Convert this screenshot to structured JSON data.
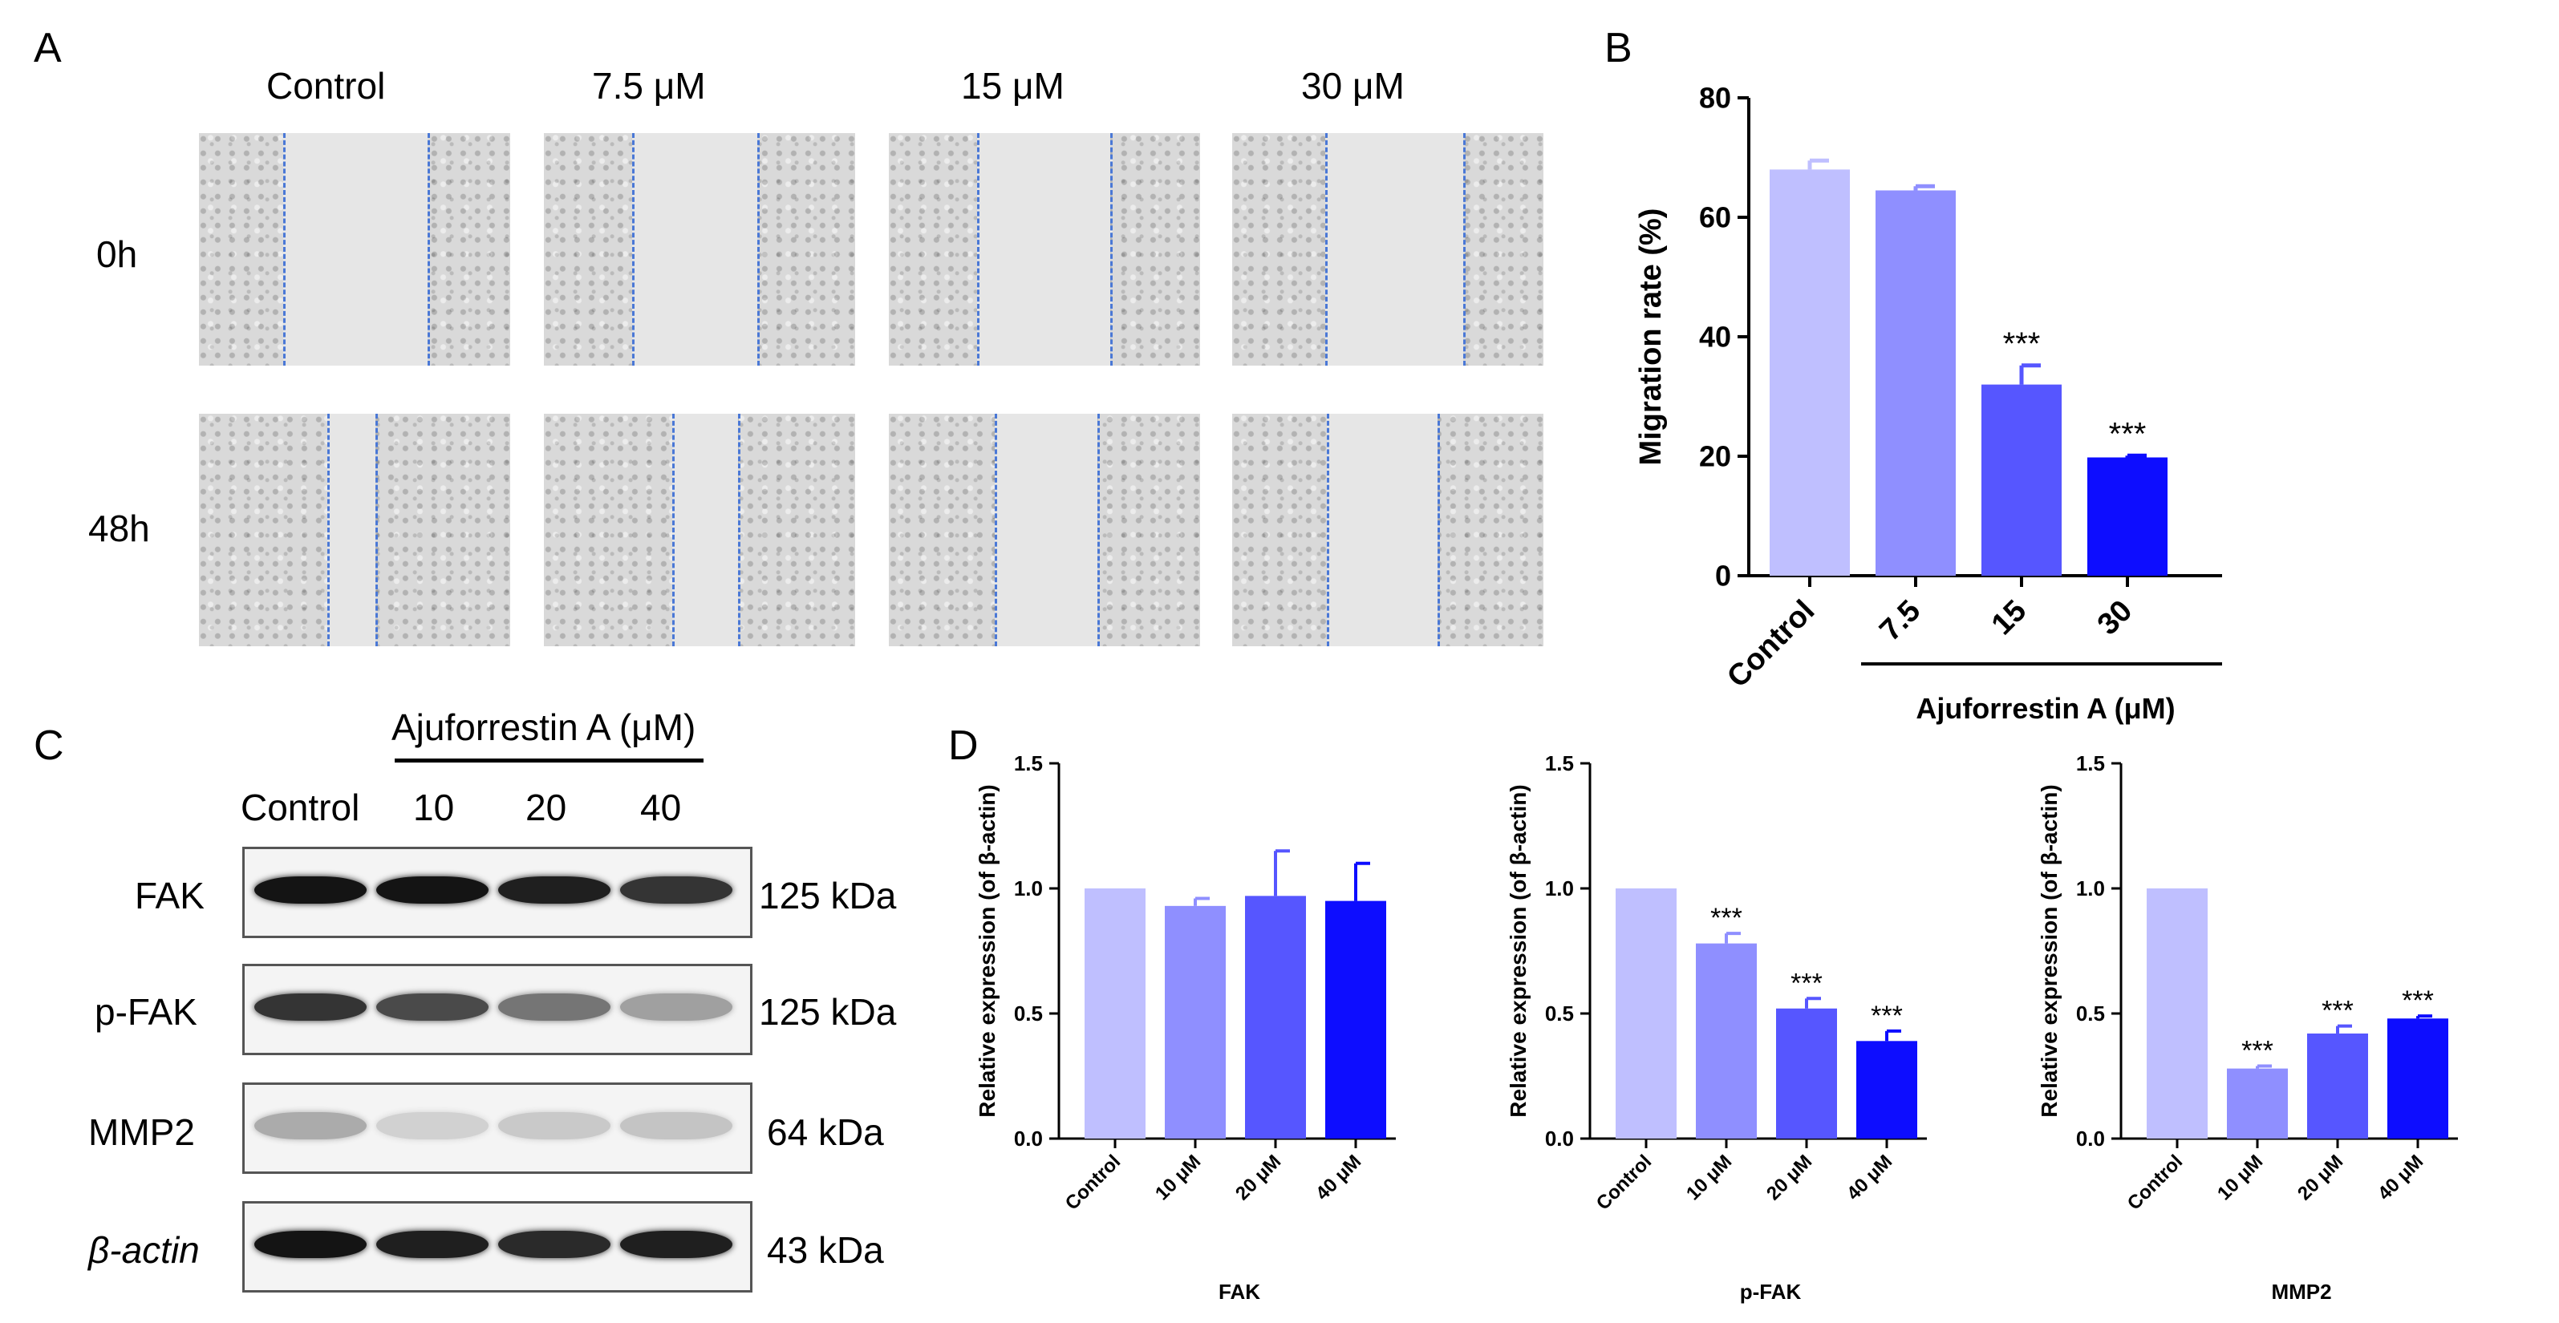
{
  "panels": {
    "a": "A",
    "b": "B",
    "c": "C",
    "d": "D"
  },
  "panel_a": {
    "columns": [
      "Control",
      "7.5 μM",
      "15 μM",
      "30 μM"
    ],
    "rows": [
      "0h",
      "48h"
    ],
    "dash_color": "#4a78d6"
  },
  "panel_c": {
    "treatment_label": "Ajuforrestin A (μM)",
    "lanes": [
      "Control",
      "10",
      "20",
      "40"
    ],
    "blots": [
      {
        "protein": "FAK",
        "size": "125 kDa",
        "intensity": [
          1.0,
          1.0,
          0.95,
          0.85
        ]
      },
      {
        "protein": "p-FAK",
        "size": "125 kDa",
        "intensity": [
          0.85,
          0.75,
          0.55,
          0.35
        ]
      },
      {
        "protein": "MMP2",
        "size": "64 kDa",
        "intensity": [
          0.3,
          0.12,
          0.16,
          0.18
        ]
      },
      {
        "protein": "β-actin",
        "size": "43 kDa",
        "intensity": [
          1.0,
          0.95,
          0.9,
          0.95
        ]
      }
    ]
  },
  "chart_data": [
    {
      "type": "bar",
      "panel": "B",
      "title": "",
      "categories": [
        "Control",
        "7.5",
        "15",
        "30"
      ],
      "values": [
        68,
        64.5,
        32,
        19.8
      ],
      "errors": [
        1.5,
        0.7,
        3.2,
        0.3
      ],
      "significance": [
        "",
        "",
        "***",
        "***"
      ],
      "colors": [
        "#bfbfff",
        "#8f8fff",
        "#5656ff",
        "#0d0dff"
      ],
      "ylabel": "Migration rate (%)",
      "xlabel": "Ajuforrestin A (μM)",
      "ylim": [
        0,
        80
      ],
      "yticks": [
        "0",
        "20",
        "40",
        "60",
        "80"
      ]
    },
    {
      "type": "bar",
      "panel": "D",
      "title": "",
      "categories": [
        "Control",
        "10 μM",
        "20 μM",
        "40 μM"
      ],
      "values": [
        1.0,
        0.93,
        0.97,
        0.95
      ],
      "errors": [
        0,
        0.03,
        0.18,
        0.15
      ],
      "significance": [
        "",
        "",
        "",
        ""
      ],
      "colors": [
        "#bfbfff",
        "#8f8fff",
        "#5656ff",
        "#0d0dff"
      ],
      "ylabel": "Relative expression (of β-actin)",
      "xlabel": "FAK",
      "ylim": [
        0,
        1.5
      ],
      "yticks": [
        "0.0",
        "0.5",
        "1.0",
        "1.5"
      ]
    },
    {
      "type": "bar",
      "panel": "D",
      "title": "",
      "categories": [
        "Control",
        "10 μM",
        "20 μM",
        "40 μM"
      ],
      "values": [
        1.0,
        0.78,
        0.52,
        0.39
      ],
      "errors": [
        0,
        0.04,
        0.04,
        0.04
      ],
      "significance": [
        "",
        "***",
        "***",
        "***"
      ],
      "colors": [
        "#bfbfff",
        "#8f8fff",
        "#5656ff",
        "#0d0dff"
      ],
      "ylabel": "Relative expression (of β-actin)",
      "xlabel": "p-FAK",
      "ylim": [
        0,
        1.5
      ],
      "yticks": [
        "0.0",
        "0.5",
        "1.0",
        "1.5"
      ]
    },
    {
      "type": "bar",
      "panel": "D",
      "title": "",
      "categories": [
        "Control",
        "10 μM",
        "20 μM",
        "40 μM"
      ],
      "values": [
        1.0,
        0.28,
        0.42,
        0.48
      ],
      "errors": [
        0,
        0.01,
        0.03,
        0.01
      ],
      "significance": [
        "",
        "***",
        "***",
        "***"
      ],
      "colors": [
        "#bfbfff",
        "#8f8fff",
        "#5656ff",
        "#0d0dff"
      ],
      "ylabel": "Relative expression (of β-actin)",
      "xlabel": "MMP2",
      "ylim": [
        0,
        1.5
      ],
      "yticks": [
        "0.0",
        "0.5",
        "1.0",
        "1.5"
      ]
    }
  ]
}
